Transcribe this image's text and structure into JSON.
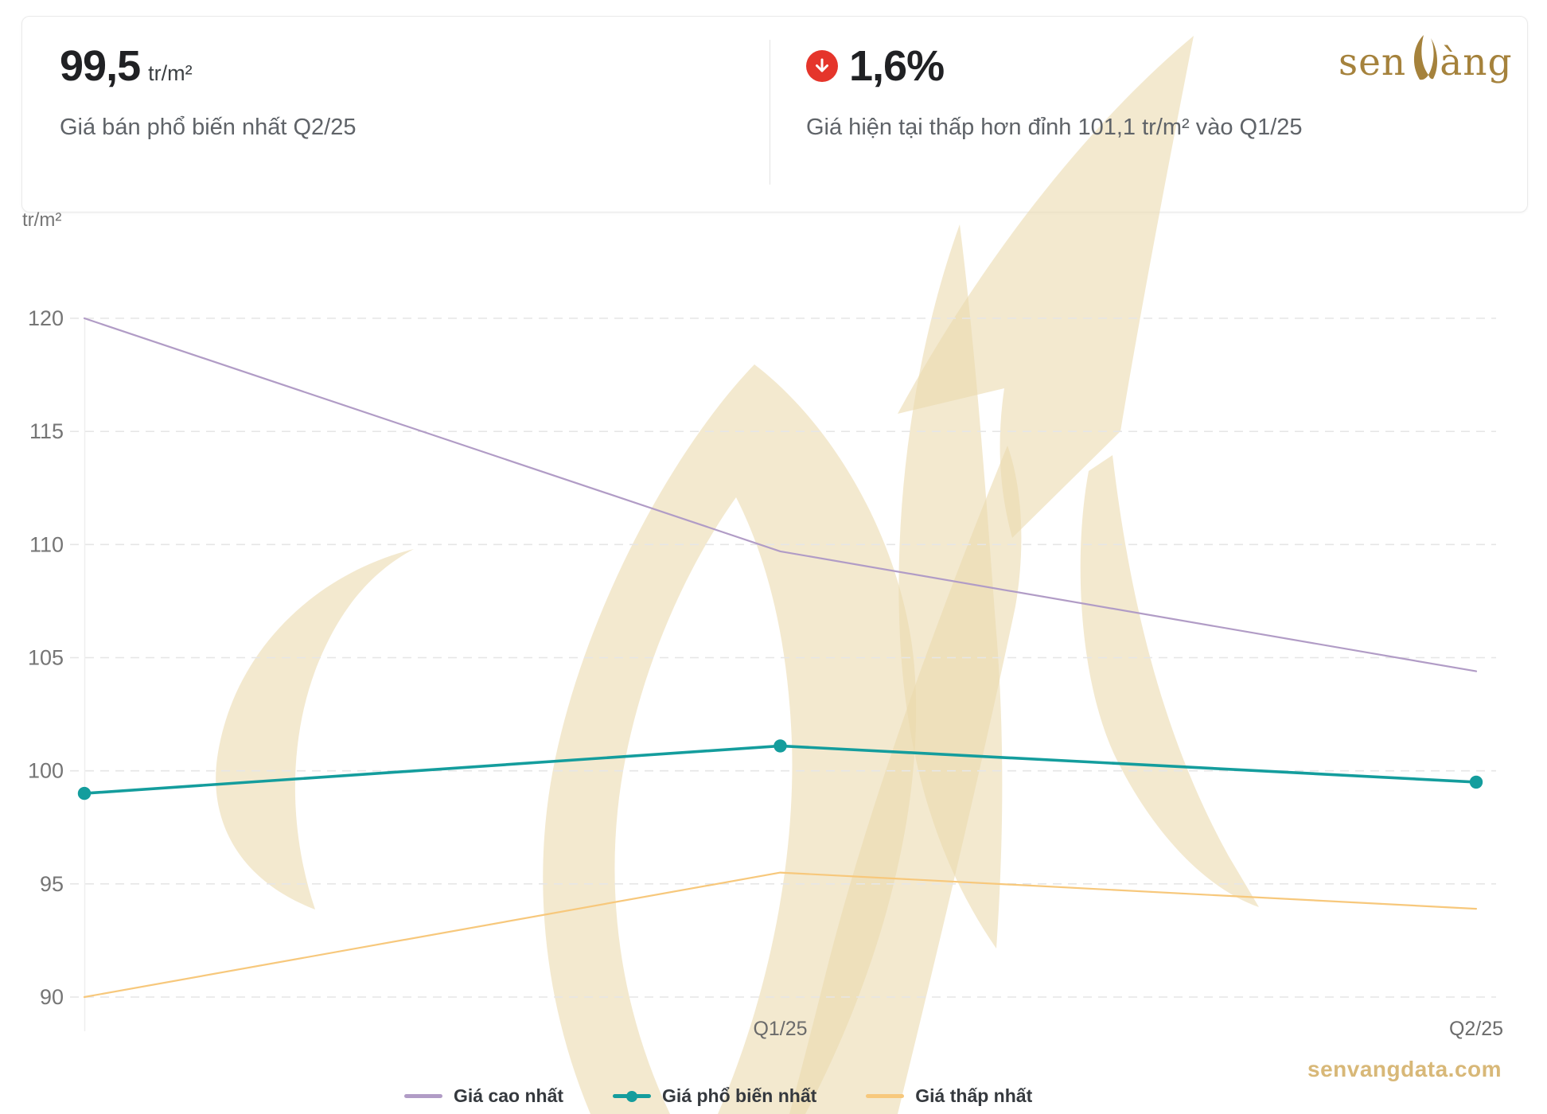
{
  "header": {
    "stat_left": {
      "value": "99,5",
      "unit": "tr/m²",
      "label": "Giá bán phổ biến nhất Q2/25"
    },
    "stat_right": {
      "value": "1,6%",
      "icon": "arrow-down-circle-icon",
      "label": "Giá hiện tại thấp hơn đỉnh 101,1 tr/m² vào Q1/25"
    },
    "logo": {
      "text_pre": "sen",
      "text_post": "àng",
      "glyph": "lotus-icon"
    }
  },
  "footer": {
    "website": "senvangdata.com"
  },
  "colors": {
    "highest": "#b19cc6",
    "most_common": "#149d9d",
    "lowest": "#f7c87c",
    "down_red": "#e5352b",
    "logo_gold": "#a5823c",
    "footer_gold": "#d8b878",
    "watermark": "#ead9ad",
    "grid": "#e6e6e6",
    "axis_text": "#757575",
    "x_axis_text": "#6b6b6b"
  },
  "chart_data": {
    "type": "line",
    "x": [
      "",
      "Q1/25",
      "Q2/25"
    ],
    "series": [
      {
        "name": "Giá cao nhất",
        "values": [
          120.0,
          109.7,
          104.4
        ],
        "color_key": "highest",
        "markers": false
      },
      {
        "name": "Giá phổ biến nhất",
        "values": [
          99.0,
          101.1,
          99.5
        ],
        "color_key": "most_common",
        "markers": true
      },
      {
        "name": "Giá thấp nhất",
        "values": [
          90.0,
          95.5,
          93.9
        ],
        "color_key": "lowest",
        "markers": false
      }
    ],
    "title": "",
    "xlabel": "",
    "ylabel": "tr/m²",
    "ylim": [
      90,
      120
    ],
    "yticks": [
      90,
      95,
      100,
      105,
      110,
      115,
      120
    ],
    "grid": "horizontal-dashed",
    "legend_position": "bottom"
  }
}
